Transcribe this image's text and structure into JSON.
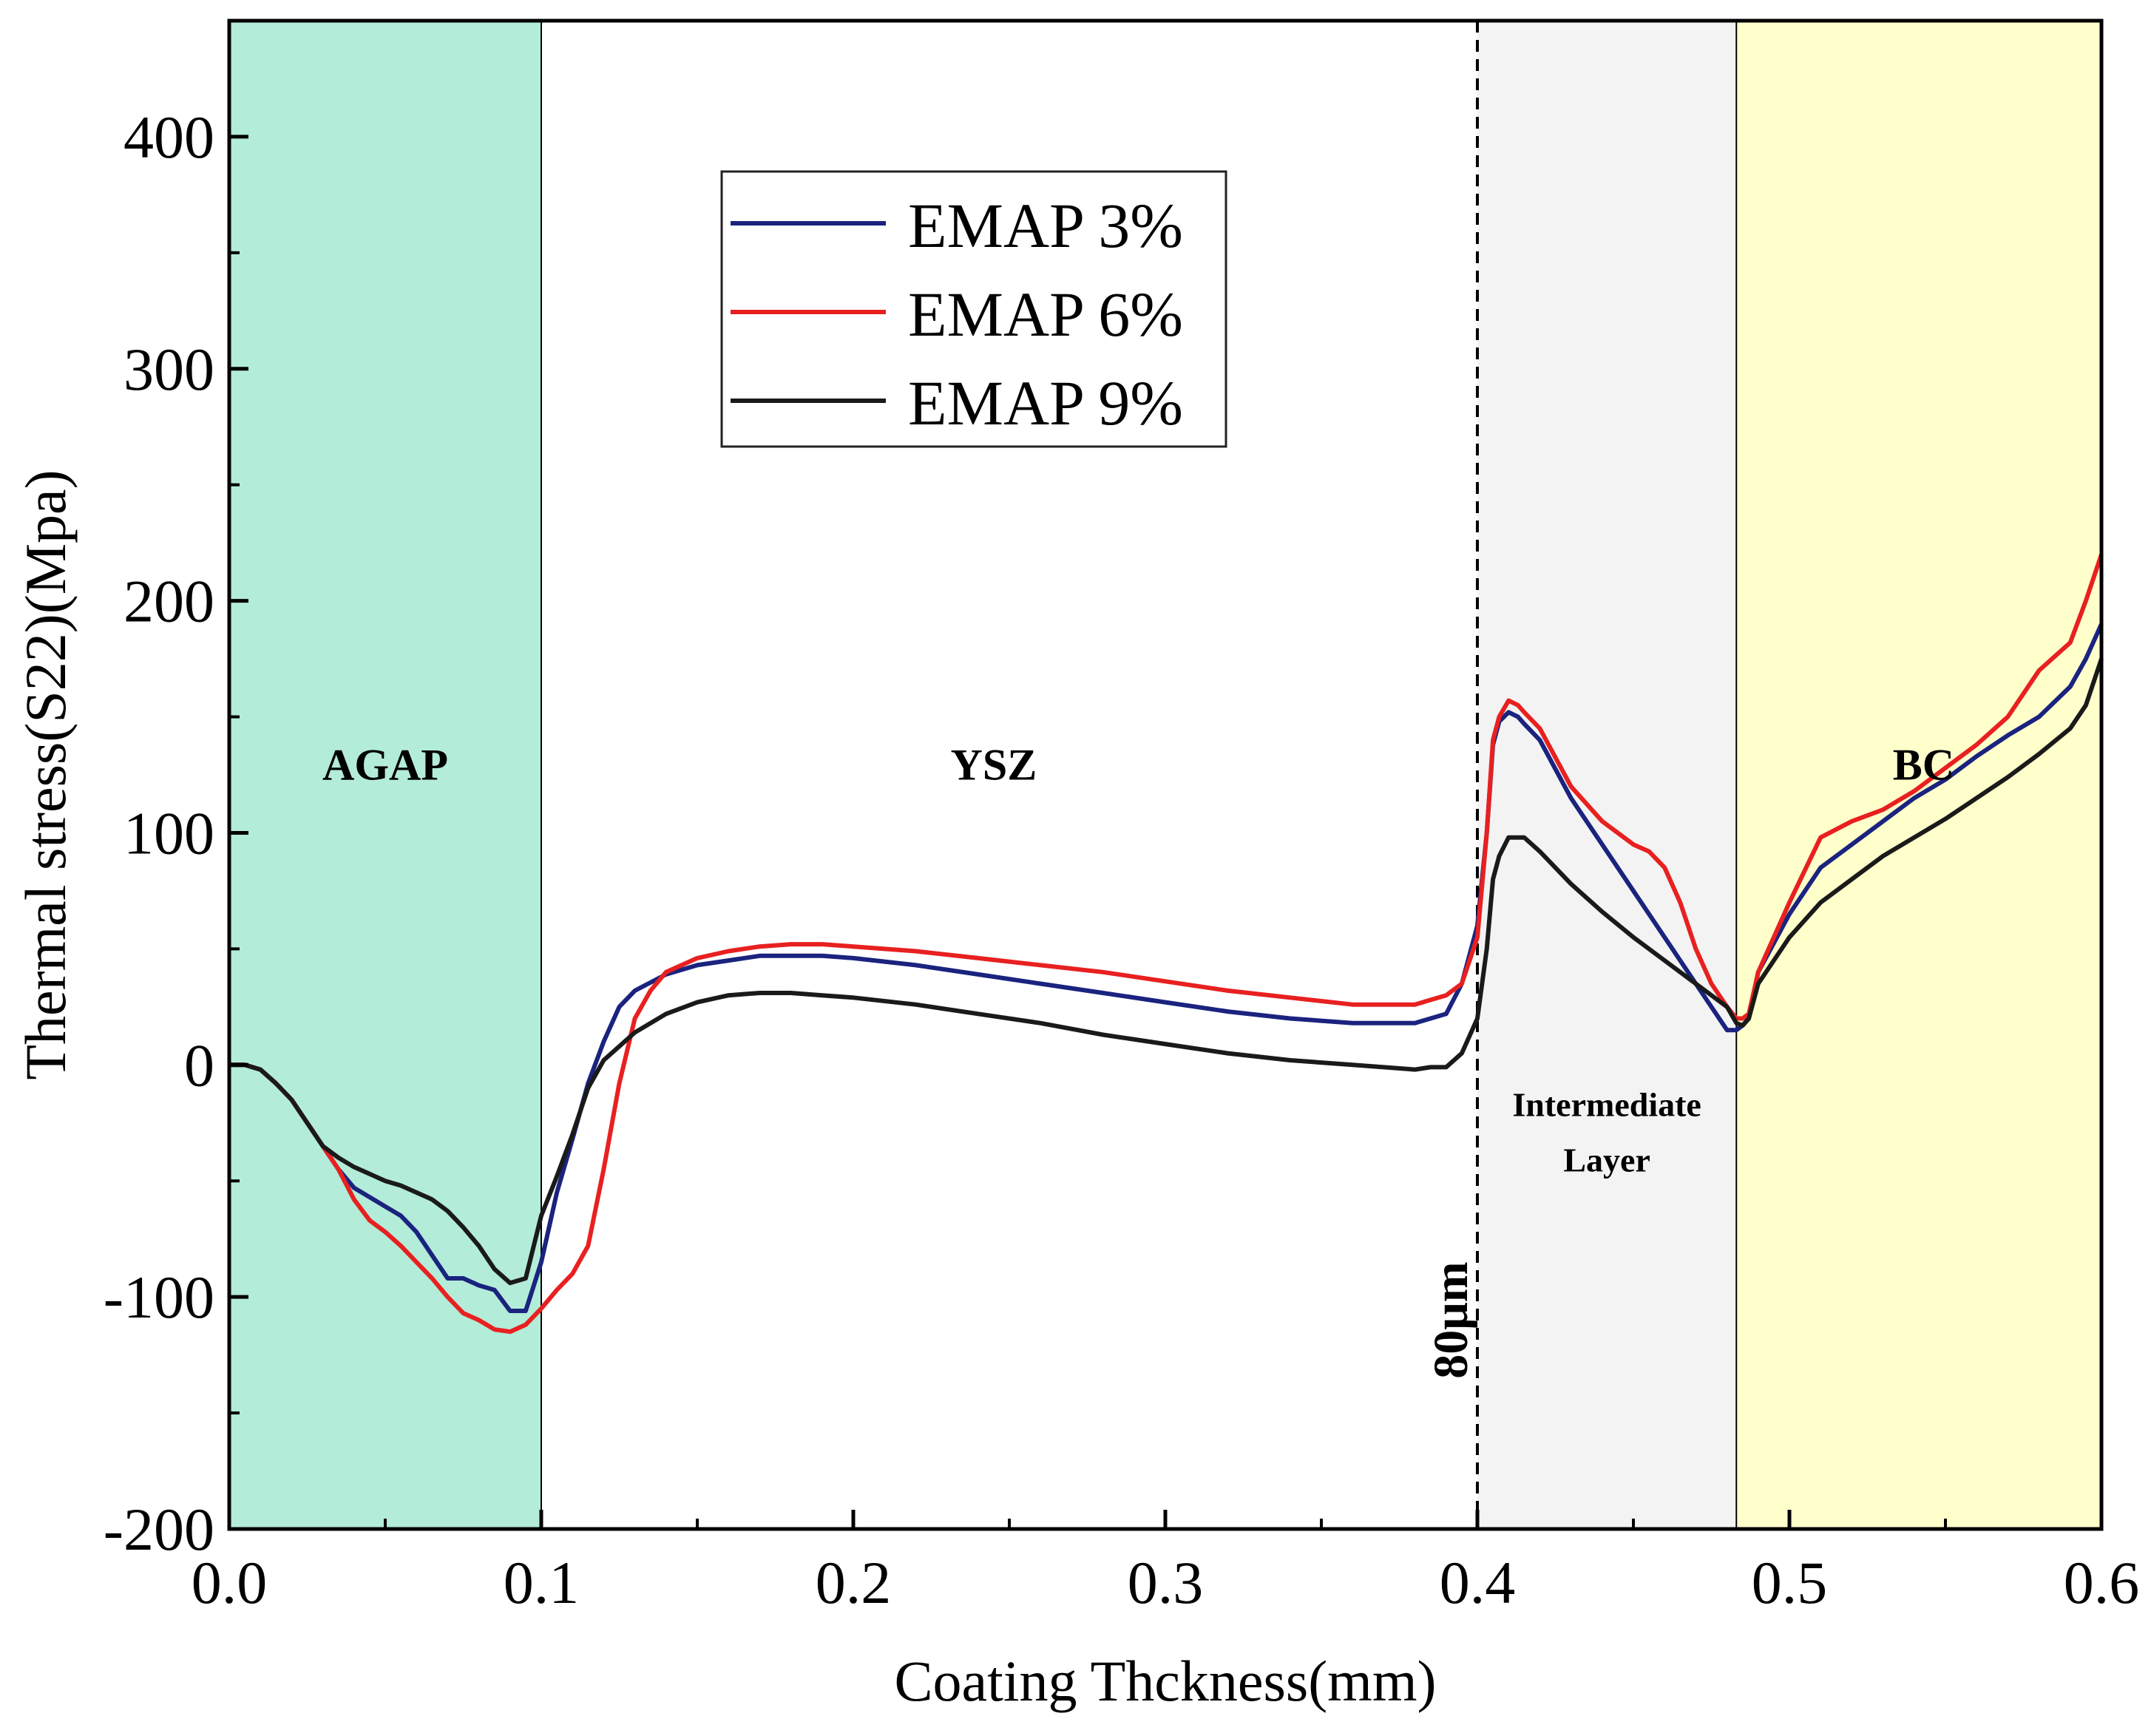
{
  "chart_data": {
    "type": "line",
    "title": "",
    "xlabel": "Coating Thckness(mm)",
    "ylabel": "Thermal stress(S22)(Mpa)",
    "xlim": [
      0.0,
      0.6
    ],
    "ylim": [
      -200,
      450
    ],
    "xticks": [
      0.0,
      0.1,
      0.2,
      0.3,
      0.4,
      0.5,
      0.6
    ],
    "xtick_labels": [
      "0.0",
      "0.1",
      "0.2",
      "0.3",
      "0.4",
      "0.5",
      "0.6"
    ],
    "yticks": [
      -200,
      -100,
      0,
      100,
      200,
      300,
      400
    ],
    "ytick_labels": [
      "-200",
      "-100",
      "0",
      "100",
      "200",
      "300",
      "400"
    ],
    "grid": false,
    "legend_position": "top-center",
    "regions": [
      {
        "name": "region-agap",
        "label": "AGAP",
        "x0": 0.0,
        "x1": 0.1,
        "color": "#b3ecd9",
        "label_x": 0.05,
        "label_y": 123
      },
      {
        "name": "region-ysz",
        "label": "YSZ",
        "x0": 0.1,
        "x1": 0.4,
        "color": "#ffffff",
        "label_x": 0.245,
        "label_y": 123
      },
      {
        "name": "region-intermediate",
        "label": "Intermediate",
        "label2": "Layer",
        "x0": 0.4,
        "x1": 0.483,
        "color": "#f3f3f3",
        "label_x": 0.4415,
        "label_y": -22,
        "label2_y": -46
      },
      {
        "name": "region-bc",
        "label": "BC",
        "x0": 0.483,
        "x1": 0.6,
        "color": "#ffffcc",
        "label_x": 0.543,
        "label_y": 123
      }
    ],
    "annotations": [
      {
        "name": "marker-80um",
        "text": "80μm",
        "x": 0.4,
        "y": -110
      }
    ],
    "series": [
      {
        "name": "EMAP 3%",
        "color": "#1a237e",
        "x": [
          0.0,
          0.005,
          0.01,
          0.015,
          0.02,
          0.025,
          0.03,
          0.035,
          0.04,
          0.045,
          0.05,
          0.055,
          0.06,
          0.065,
          0.07,
          0.075,
          0.08,
          0.085,
          0.09,
          0.095,
          0.1,
          0.105,
          0.11,
          0.115,
          0.12,
          0.125,
          0.13,
          0.14,
          0.15,
          0.16,
          0.17,
          0.18,
          0.19,
          0.2,
          0.22,
          0.24,
          0.26,
          0.28,
          0.3,
          0.32,
          0.34,
          0.36,
          0.38,
          0.39,
          0.395,
          0.4,
          0.403,
          0.405,
          0.407,
          0.41,
          0.413,
          0.415,
          0.42,
          0.43,
          0.44,
          0.45,
          0.46,
          0.47,
          0.48,
          0.483,
          0.485,
          0.487,
          0.49,
          0.5,
          0.51,
          0.52,
          0.53,
          0.54,
          0.55,
          0.56,
          0.57,
          0.58,
          0.59,
          0.595,
          0.6
        ],
        "y": [
          0,
          0,
          -2,
          -8,
          -15,
          -25,
          -35,
          -45,
          -53,
          -57,
          -61,
          -65,
          -72,
          -82,
          -92,
          -92,
          -95,
          -97,
          -106,
          -106,
          -85,
          -55,
          -32,
          -8,
          10,
          25,
          32,
          39,
          43,
          45,
          47,
          47,
          47,
          46,
          43,
          39,
          35,
          31,
          27,
          23,
          20,
          18,
          18,
          22,
          35,
          60,
          100,
          138,
          148,
          152,
          150,
          147,
          140,
          115,
          95,
          75,
          55,
          35,
          15,
          15,
          17,
          20,
          40,
          65,
          85,
          95,
          105,
          115,
          123,
          133,
          142,
          150,
          163,
          175,
          190
        ]
      },
      {
        "name": "EMAP 6%",
        "color": "#e82020",
        "x": [
          0.0,
          0.005,
          0.01,
          0.015,
          0.02,
          0.025,
          0.03,
          0.035,
          0.04,
          0.045,
          0.05,
          0.055,
          0.06,
          0.065,
          0.07,
          0.075,
          0.08,
          0.085,
          0.09,
          0.095,
          0.1,
          0.105,
          0.11,
          0.115,
          0.12,
          0.125,
          0.13,
          0.135,
          0.14,
          0.15,
          0.16,
          0.17,
          0.18,
          0.19,
          0.2,
          0.22,
          0.24,
          0.26,
          0.28,
          0.3,
          0.32,
          0.34,
          0.36,
          0.38,
          0.385,
          0.39,
          0.395,
          0.4,
          0.403,
          0.405,
          0.407,
          0.41,
          0.413,
          0.415,
          0.42,
          0.43,
          0.44,
          0.45,
          0.455,
          0.46,
          0.465,
          0.47,
          0.475,
          0.48,
          0.483,
          0.485,
          0.487,
          0.49,
          0.5,
          0.51,
          0.52,
          0.53,
          0.54,
          0.55,
          0.56,
          0.57,
          0.58,
          0.59,
          0.595,
          0.6
        ],
        "y": [
          0,
          0,
          -2,
          -8,
          -15,
          -25,
          -35,
          -45,
          -58,
          -67,
          -72,
          -78,
          -85,
          -92,
          -100,
          -107,
          -110,
          -114,
          -115,
          -112,
          -105,
          -97,
          -90,
          -78,
          -45,
          -8,
          20,
          32,
          40,
          46,
          49,
          51,
          52,
          52,
          51,
          49,
          46,
          43,
          40,
          36,
          32,
          29,
          26,
          26,
          28,
          30,
          35,
          55,
          100,
          140,
          150,
          157,
          155,
          152,
          145,
          120,
          105,
          95,
          92,
          85,
          70,
          50,
          35,
          25,
          20,
          20,
          22,
          40,
          70,
          98,
          105,
          110,
          118,
          128,
          138,
          150,
          170,
          182,
          200,
          220
        ]
      },
      {
        "name": "EMAP 9%",
        "color": "#1a1a1a",
        "x": [
          0.0,
          0.005,
          0.01,
          0.015,
          0.02,
          0.025,
          0.03,
          0.035,
          0.04,
          0.045,
          0.05,
          0.055,
          0.06,
          0.065,
          0.07,
          0.075,
          0.08,
          0.085,
          0.09,
          0.095,
          0.1,
          0.105,
          0.11,
          0.115,
          0.12,
          0.125,
          0.13,
          0.14,
          0.15,
          0.16,
          0.17,
          0.18,
          0.19,
          0.2,
          0.22,
          0.24,
          0.26,
          0.28,
          0.3,
          0.32,
          0.34,
          0.36,
          0.38,
          0.385,
          0.39,
          0.395,
          0.4,
          0.403,
          0.405,
          0.407,
          0.41,
          0.415,
          0.42,
          0.43,
          0.44,
          0.45,
          0.46,
          0.47,
          0.48,
          0.483,
          0.485,
          0.487,
          0.49,
          0.5,
          0.51,
          0.52,
          0.53,
          0.54,
          0.55,
          0.56,
          0.57,
          0.58,
          0.59,
          0.595,
          0.6
        ],
        "y": [
          0,
          0,
          -2,
          -8,
          -15,
          -25,
          -35,
          -40,
          -44,
          -47,
          -50,
          -52,
          -55,
          -58,
          -63,
          -70,
          -78,
          -88,
          -94,
          -92,
          -65,
          -48,
          -30,
          -10,
          2,
          8,
          14,
          22,
          27,
          30,
          31,
          31,
          30,
          29,
          26,
          22,
          18,
          13,
          9,
          5,
          2,
          0,
          -2,
          -1,
          -1,
          5,
          20,
          50,
          80,
          90,
          98,
          98,
          92,
          78,
          66,
          55,
          45,
          35,
          25,
          18,
          17,
          20,
          35,
          55,
          70,
          80,
          90,
          98,
          106,
          115,
          124,
          134,
          145,
          155,
          175
        ]
      }
    ]
  }
}
